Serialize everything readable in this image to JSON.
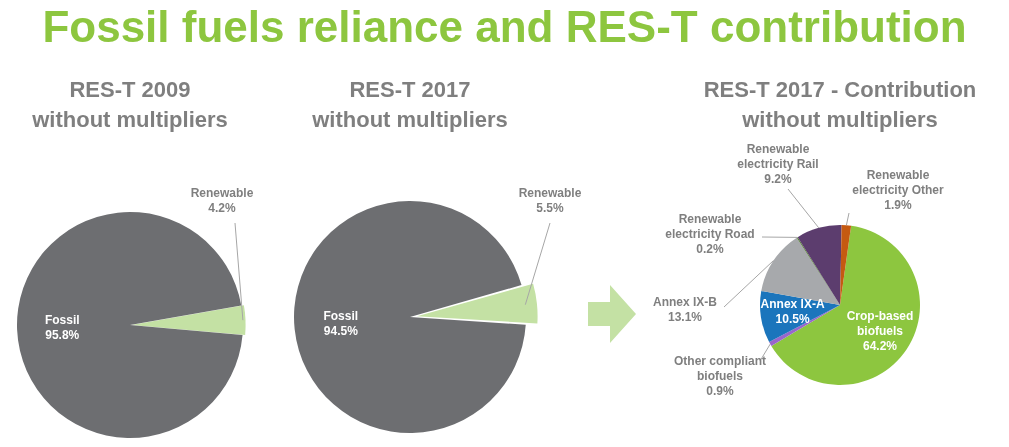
{
  "chart_data": [
    {
      "type": "pie",
      "title": "RES-T 2009\nwithout multipliers",
      "annotations": [
        "Fossil fuels reliance and RES-T contribution"
      ],
      "categories": [
        "Renewable",
        "Fossil"
      ],
      "values": [
        4.2,
        95.8
      ],
      "colors": [
        "#c4e1a4",
        "#6d6e71"
      ],
      "value_labels": [
        "4.2%",
        "95.8%"
      ]
    },
    {
      "type": "pie",
      "title": "RES-T 2017\nwithout multipliers",
      "categories": [
        "Renewable",
        "Fossil"
      ],
      "values": [
        5.5,
        94.5
      ],
      "colors": [
        "#c4e1a4",
        "#6d6e71"
      ],
      "value_labels": [
        "5.5%",
        "94.5%"
      ]
    },
    {
      "type": "pie",
      "title": "RES-T 2017 - Contribution\nwithout multipliers",
      "categories": [
        "Crop-based biofuels",
        "Other compliant biofuels",
        "Annex IX-A",
        "Annex IX-B",
        "Renewable electricity Road",
        "Renewable electricity Rail",
        "Renewable electricity Other"
      ],
      "values": [
        64.2,
        0.9,
        10.5,
        13.1,
        0.2,
        9.2,
        1.9
      ],
      "colors": [
        "#8dc63f",
        "#9966cc",
        "#1b75bc",
        "#a7a9ac",
        "#4d7a2a",
        "#5c3d6e",
        "#c55a11"
      ],
      "value_labels": [
        "64.2%",
        "0.9%",
        "10.5%",
        "13.1%",
        "0.2%",
        "9.2%",
        "1.9%"
      ]
    }
  ]
}
